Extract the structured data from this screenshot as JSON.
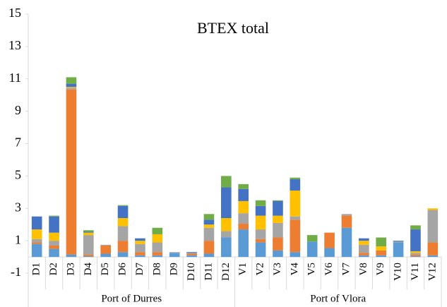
{
  "chart_data": {
    "type": "stacked_bar",
    "title": "BTEX total",
    "categories": [
      "D1",
      "D2",
      "D3",
      "D4",
      "D5",
      "D6",
      "D7",
      "D8",
      "D9",
      "D10",
      "D11",
      "D12",
      "V1",
      "V2",
      "V3",
      "V4",
      "V5",
      "V6",
      "V7",
      "V8",
      "V9",
      "V10",
      "V11",
      "V12"
    ],
    "groups": [
      "Port of Durres",
      "Port of Vlora"
    ],
    "series": [
      {
        "color": "#5b9bd5",
        "values": [
          0.8,
          0.5,
          0.15,
          0.05,
          0.2,
          0.3,
          0.1,
          0.1,
          0.25,
          0.1,
          0.2,
          1.2,
          1.7,
          0.9,
          0.4,
          0.3,
          0.95,
          0.55,
          1.8,
          0.1,
          0.1,
          0.9,
          0.05,
          0.1
        ]
      },
      {
        "color": "#ed7d31",
        "values": [
          0.1,
          0.2,
          10.2,
          0.1,
          0.5,
          0.7,
          0.2,
          0.2,
          0,
          0.1,
          0.8,
          0,
          0.35,
          0.2,
          0.8,
          2.0,
          0,
          0.95,
          0.75,
          0.15,
          0.3,
          0,
          0.1,
          0.8
        ]
      },
      {
        "color": "#a5a5a5",
        "values": [
          0.2,
          0.3,
          0.1,
          1.2,
          0.05,
          0.9,
          0.5,
          0.6,
          0.05,
          0.05,
          0.8,
          0.4,
          0.65,
          0.6,
          0.9,
          0.2,
          0,
          0,
          0.1,
          0.5,
          0,
          0.05,
          0.1,
          2.0
        ]
      },
      {
        "color": "#ffc000",
        "values": [
          0.6,
          0.5,
          0.05,
          0.15,
          0,
          0.5,
          0.2,
          0.5,
          0,
          0,
          0.2,
          0.8,
          0.75,
          0.85,
          0.45,
          1.6,
          0,
          0,
          0,
          0.25,
          0.25,
          0,
          0.1,
          0.1
        ]
      },
      {
        "color": "#4472c4",
        "values": [
          0.8,
          1.0,
          0.2,
          0.05,
          0,
          0.75,
          0.15,
          0,
          0,
          0.05,
          0.3,
          1.9,
          0.75,
          0.6,
          0.9,
          0.7,
          0,
          0,
          0,
          0.15,
          0,
          0.05,
          1.35,
          0
        ]
      },
      {
        "color": "#70ad47",
        "values": [
          0,
          0.05,
          0.4,
          0.1,
          0,
          0.05,
          0,
          0.4,
          0,
          0,
          0.35,
          0.7,
          0.3,
          0.35,
          0.05,
          0.1,
          0.4,
          0,
          0,
          0,
          0.55,
          0,
          0.25,
          0
        ]
      }
    ],
    "ylim": [
      -1,
      15
    ],
    "yticks": [
      -1,
      1,
      3,
      5,
      7,
      9,
      11,
      13,
      15
    ]
  }
}
